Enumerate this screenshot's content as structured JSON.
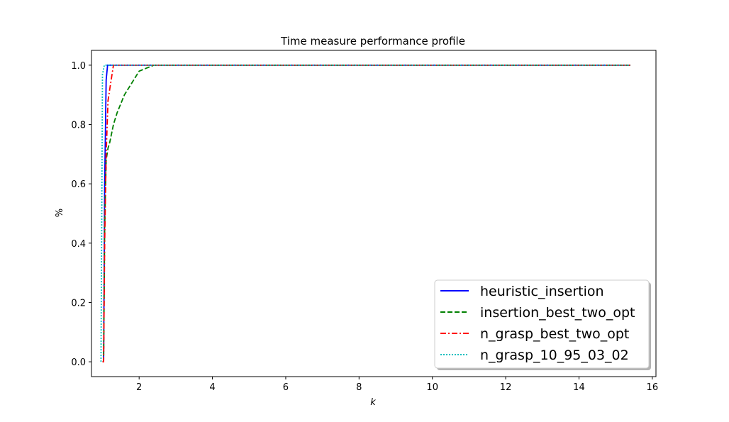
{
  "chart_data": {
    "type": "line",
    "title": "Time measure performance profile",
    "xlabel": "k",
    "ylabel": "%",
    "xlim": [
      0.7,
      16.1
    ],
    "ylim": [
      -0.05,
      1.05
    ],
    "xticks": [
      2,
      4,
      6,
      8,
      10,
      12,
      14,
      16
    ],
    "yticks": [
      0.0,
      0.2,
      0.4,
      0.6,
      0.8,
      1.0
    ],
    "xtick_labels": [
      "2",
      "4",
      "6",
      "8",
      "10",
      "12",
      "14",
      "16"
    ],
    "ytick_labels": [
      "0.0",
      "0.2",
      "0.4",
      "0.6",
      "0.8",
      "1.0"
    ],
    "grid": false,
    "legend_position": "lower-right",
    "series": [
      {
        "name": "heuristic_insertion",
        "color": "#0000ff",
        "style": "solid",
        "x": [
          1.0,
          1.03,
          1.06,
          1.1,
          1.14,
          15.4
        ],
        "y": [
          0.0,
          0.0,
          0.6,
          0.95,
          1.0,
          1.0
        ]
      },
      {
        "name": "insertion_best_two_opt",
        "color": "#008000",
        "style": "dashed",
        "x": [
          1.0,
          1.03,
          1.06,
          1.1,
          1.15,
          1.2,
          1.3,
          1.4,
          1.6,
          1.8,
          2.0,
          2.2,
          2.4,
          15.4
        ],
        "y": [
          0.0,
          0.0,
          0.45,
          0.68,
          0.72,
          0.74,
          0.8,
          0.84,
          0.9,
          0.94,
          0.98,
          0.99,
          1.0,
          1.0
        ]
      },
      {
        "name": "n_grasp_best_two_opt",
        "color": "#ff0000",
        "style": "dashdot",
        "x": [
          1.0,
          1.03,
          1.06,
          1.1,
          1.15,
          1.2,
          1.25,
          1.3,
          15.4
        ],
        "y": [
          0.0,
          0.0,
          0.4,
          0.7,
          0.88,
          0.92,
          0.96,
          1.0,
          1.0
        ]
      },
      {
        "name": "n_grasp_10_95_03_02",
        "color": "#00bfbf",
        "style": "dotted",
        "x": [
          0.96,
          0.98,
          1.0,
          1.02,
          1.05,
          1.08,
          15.4
        ],
        "y": [
          0.0,
          0.5,
          0.97,
          0.98,
          1.0,
          1.0,
          1.0
        ]
      }
    ]
  }
}
